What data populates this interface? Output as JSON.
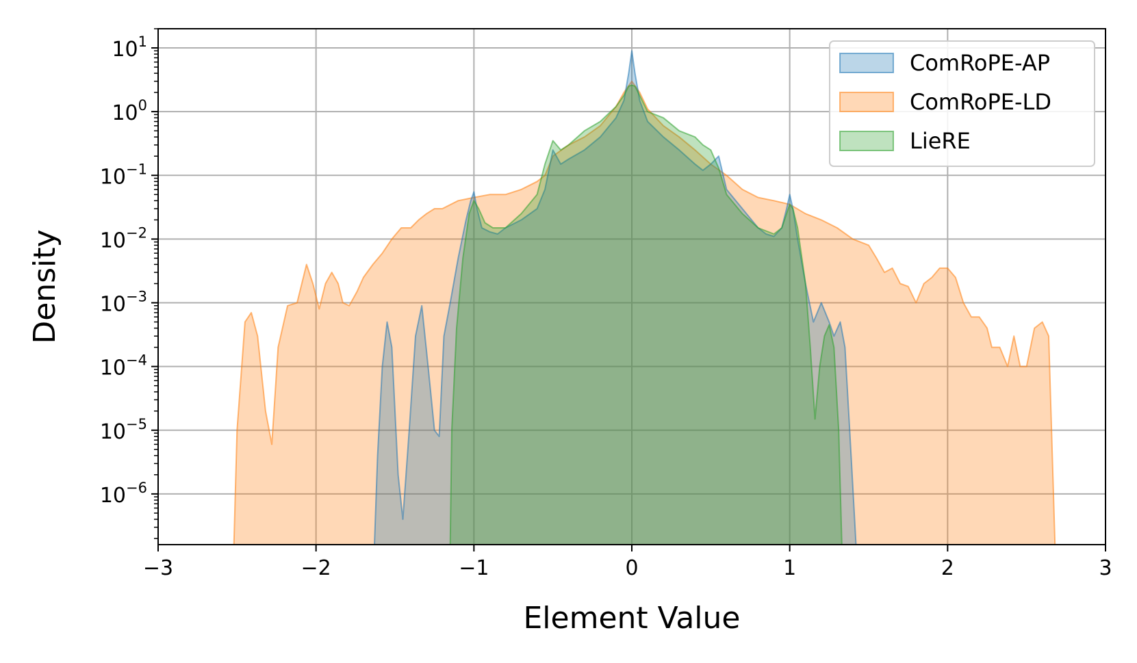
{
  "chart_data": {
    "type": "area",
    "title": "",
    "xlabel": "Element Value",
    "ylabel": "Density",
    "xlim": [
      -3,
      3
    ],
    "ylim": [
      1.6e-07,
      20
    ],
    "yscale": "log",
    "grid": true,
    "legend_position": "top-right",
    "x_ticks": [
      {
        "value": -3,
        "label": "−3"
      },
      {
        "value": -2,
        "label": "−2"
      },
      {
        "value": -1,
        "label": "−1"
      },
      {
        "value": 0,
        "label": "0"
      },
      {
        "value": 1,
        "label": "1"
      },
      {
        "value": 2,
        "label": "2"
      },
      {
        "value": 3,
        "label": "3"
      }
    ],
    "y_ticks": [
      {
        "value": 1e-06,
        "base": "10",
        "exp": "−6"
      },
      {
        "value": 1e-05,
        "base": "10",
        "exp": "−5"
      },
      {
        "value": 0.0001,
        "base": "10",
        "exp": "−4"
      },
      {
        "value": 0.001,
        "base": "10",
        "exp": "−3"
      },
      {
        "value": 0.01,
        "base": "10",
        "exp": "−2"
      },
      {
        "value": 0.1,
        "base": "10",
        "exp": "−1"
      },
      {
        "value": 1,
        "base": "10",
        "exp": "0"
      },
      {
        "value": 10,
        "base": "10",
        "exp": "1"
      }
    ],
    "series": [
      {
        "name": "ComRoPE-LD",
        "color": "#ff7f0e",
        "x": [
          -2.52,
          -2.5,
          -2.45,
          -2.41,
          -2.37,
          -2.32,
          -2.28,
          -2.24,
          -2.18,
          -2.12,
          -2.06,
          -2.02,
          -1.98,
          -1.94,
          -1.9,
          -1.86,
          -1.83,
          -1.79,
          -1.74,
          -1.7,
          -1.64,
          -1.58,
          -1.52,
          -1.46,
          -1.4,
          -1.35,
          -1.3,
          -1.25,
          -1.2,
          -1.1,
          -1.0,
          -0.9,
          -0.8,
          -0.7,
          -0.6,
          -0.55,
          -0.5,
          -0.4,
          -0.3,
          -0.2,
          -0.1,
          -0.05,
          0.0,
          0.05,
          0.1,
          0.2,
          0.3,
          0.4,
          0.5,
          0.6,
          0.7,
          0.8,
          0.9,
          1.0,
          1.1,
          1.2,
          1.3,
          1.4,
          1.5,
          1.55,
          1.6,
          1.65,
          1.7,
          1.75,
          1.8,
          1.85,
          1.9,
          1.95,
          2.0,
          2.05,
          2.1,
          2.15,
          2.2,
          2.25,
          2.28,
          2.33,
          2.38,
          2.42,
          2.46,
          2.5,
          2.55,
          2.6,
          2.64,
          2.68
        ],
        "y": [
          1.6e-07,
          1e-05,
          0.0005,
          0.0007,
          0.0003,
          2e-05,
          6e-06,
          0.0002,
          0.0009,
          0.001,
          0.004,
          0.002,
          0.0008,
          0.002,
          0.003,
          0.002,
          0.001,
          0.0009,
          0.0015,
          0.0025,
          0.004,
          0.006,
          0.01,
          0.015,
          0.015,
          0.02,
          0.025,
          0.03,
          0.03,
          0.04,
          0.045,
          0.05,
          0.05,
          0.06,
          0.08,
          0.1,
          0.2,
          0.3,
          0.4,
          0.6,
          1.2,
          2.0,
          3.0,
          2.0,
          1.1,
          0.6,
          0.4,
          0.25,
          0.15,
          0.1,
          0.06,
          0.045,
          0.04,
          0.035,
          0.025,
          0.02,
          0.015,
          0.01,
          0.008,
          0.005,
          0.003,
          0.0035,
          0.002,
          0.0018,
          0.001,
          0.002,
          0.0025,
          0.0035,
          0.0035,
          0.0025,
          0.001,
          0.0006,
          0.0006,
          0.0004,
          0.0002,
          0.0002,
          0.0001,
          0.0003,
          0.0001,
          0.0001,
          0.0004,
          0.0005,
          0.0003,
          1.6e-07
        ]
      },
      {
        "name": "ComRoPE-AP",
        "color": "#1f77b4",
        "x": [
          -1.63,
          -1.61,
          -1.58,
          -1.55,
          -1.52,
          -1.48,
          -1.45,
          -1.41,
          -1.37,
          -1.33,
          -1.29,
          -1.25,
          -1.22,
          -1.19,
          -1.15,
          -1.1,
          -1.05,
          -1.02,
          -1.0,
          -0.98,
          -0.95,
          -0.9,
          -0.85,
          -0.8,
          -0.7,
          -0.6,
          -0.55,
          -0.5,
          -0.45,
          -0.4,
          -0.3,
          -0.2,
          -0.1,
          -0.05,
          -0.02,
          0.0,
          0.02,
          0.05,
          0.1,
          0.2,
          0.3,
          0.4,
          0.45,
          0.5,
          0.55,
          0.6,
          0.7,
          0.8,
          0.85,
          0.9,
          0.95,
          0.98,
          1.0,
          1.02,
          1.05,
          1.1,
          1.15,
          1.2,
          1.25,
          1.28,
          1.32,
          1.35,
          1.38,
          1.42
        ],
        "y": [
          1.6e-07,
          4e-06,
          0.0001,
          0.0005,
          0.0002,
          2e-06,
          4e-07,
          1e-05,
          0.0003,
          0.0009,
          0.0001,
          1e-05,
          8e-06,
          0.0003,
          0.001,
          0.005,
          0.02,
          0.04,
          0.055,
          0.03,
          0.015,
          0.013,
          0.012,
          0.015,
          0.02,
          0.03,
          0.06,
          0.25,
          0.15,
          0.18,
          0.25,
          0.4,
          0.8,
          1.5,
          4.0,
          9.0,
          4.0,
          1.5,
          0.7,
          0.4,
          0.25,
          0.15,
          0.12,
          0.15,
          0.2,
          0.06,
          0.03,
          0.015,
          0.012,
          0.011,
          0.015,
          0.03,
          0.05,
          0.03,
          0.01,
          0.002,
          0.0005,
          0.001,
          0.0005,
          0.0003,
          0.0005,
          0.0002,
          1e-05,
          1.6e-07
        ]
      },
      {
        "name": "LieRE",
        "color": "#2ca02c",
        "x": [
          -1.15,
          -1.14,
          -1.11,
          -1.07,
          -1.03,
          -1.0,
          -0.97,
          -0.93,
          -0.88,
          -0.8,
          -0.7,
          -0.6,
          -0.55,
          -0.5,
          -0.45,
          -0.4,
          -0.3,
          -0.2,
          -0.1,
          -0.05,
          -0.02,
          0.0,
          0.02,
          0.05,
          0.1,
          0.2,
          0.3,
          0.4,
          0.45,
          0.5,
          0.55,
          0.6,
          0.7,
          0.8,
          0.9,
          0.95,
          0.98,
          1.0,
          1.02,
          1.05,
          1.1,
          1.13,
          1.16,
          1.19,
          1.22,
          1.25,
          1.28,
          1.31,
          1.33
        ],
        "y": [
          1.6e-07,
          1e-05,
          0.0004,
          0.005,
          0.025,
          0.04,
          0.03,
          0.018,
          0.015,
          0.015,
          0.025,
          0.05,
          0.15,
          0.35,
          0.25,
          0.3,
          0.5,
          0.7,
          1.2,
          1.8,
          2.5,
          2.6,
          2.5,
          1.8,
          1.0,
          0.8,
          0.5,
          0.4,
          0.3,
          0.25,
          0.13,
          0.05,
          0.025,
          0.015,
          0.012,
          0.015,
          0.025,
          0.035,
          0.03,
          0.015,
          0.002,
          0.0002,
          1.5e-05,
          0.0001,
          0.0003,
          0.00045,
          0.0002,
          1e-05,
          1.6e-07
        ]
      }
    ]
  }
}
